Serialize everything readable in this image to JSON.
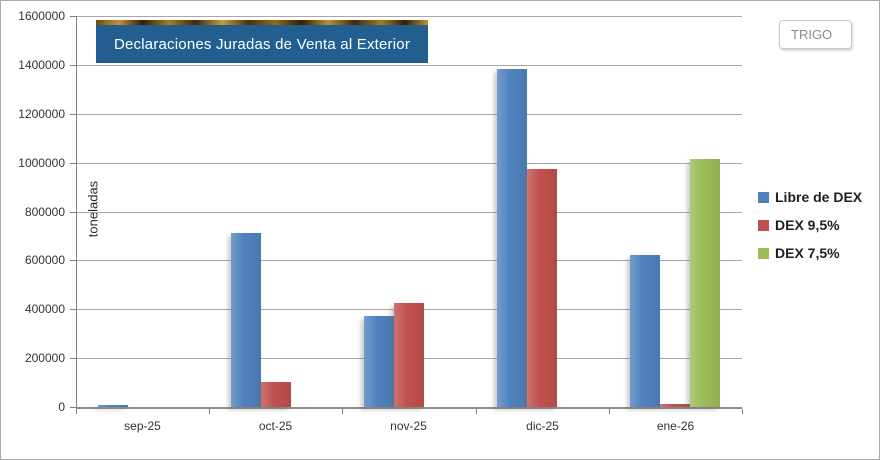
{
  "filter": {
    "label": "TRIGO"
  },
  "chart_data": {
    "type": "bar",
    "title": "Declaraciones Juradas de Venta al Exterior",
    "xlabel": "",
    "ylabel": "toneladas",
    "categories": [
      "sep-25",
      "oct-25",
      "nov-25",
      "dic-25",
      "ene-26"
    ],
    "series": [
      {
        "name": "Libre de DEX",
        "color": "#4F81BD",
        "values": [
          10000,
          713000,
          372000,
          1385000,
          620000
        ]
      },
      {
        "name": "DEX 9,5%",
        "color": "#C0504D",
        "values": [
          0,
          103000,
          424000,
          973000,
          12000
        ]
      },
      {
        "name": "DEX 7,5%",
        "color": "#9BBB59",
        "values": [
          0,
          0,
          0,
          0,
          1013000
        ]
      }
    ],
    "ylim": [
      0,
      1600000
    ],
    "ytick_step": 200000,
    "grid": true,
    "legend_position": "right"
  }
}
